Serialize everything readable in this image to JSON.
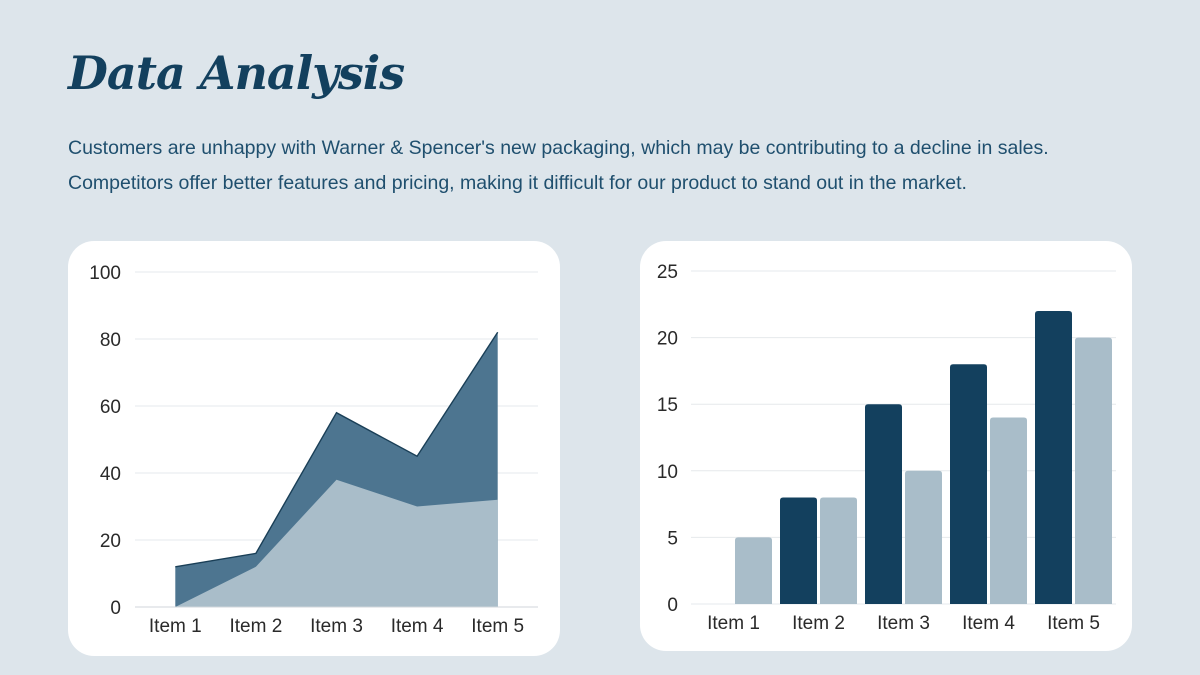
{
  "title": "Data Analysis",
  "description": [
    "Customers are unhappy with Warner & Spencer's new packaging, which may be contributing to a decline in sales.",
    "Competitors offer better features and pricing, making it difficult for our product to stand out in the market."
  ],
  "colors": {
    "background": "#dde5eb",
    "dark": "#13405e",
    "area_dark": "#4d7590",
    "light": "#a9bdc9"
  },
  "chart_data": [
    {
      "type": "area",
      "categories": [
        "Item 1",
        "Item 2",
        "Item 3",
        "Item 4",
        "Item 5"
      ],
      "series": [
        {
          "values": [
            12,
            16,
            58,
            45,
            82
          ],
          "color": "#4d7590"
        },
        {
          "values": [
            0,
            12,
            38,
            30,
            32
          ],
          "color": "#a9bdc9"
        }
      ],
      "ylim": [
        0,
        100
      ],
      "yticks": [
        0,
        20,
        40,
        60,
        80,
        100
      ],
      "grid": true,
      "title": "",
      "xlabel": "",
      "ylabel": ""
    },
    {
      "type": "bar",
      "categories": [
        "Item 1",
        "Item 2",
        "Item 3",
        "Item 4",
        "Item 5"
      ],
      "series": [
        {
          "values": [
            0,
            8,
            15,
            18,
            22
          ],
          "color": "#13405e"
        },
        {
          "values": [
            5,
            8,
            10,
            14,
            20
          ],
          "color": "#a9bdc9"
        }
      ],
      "ylim": [
        0,
        25
      ],
      "yticks": [
        0,
        5,
        10,
        15,
        20,
        25
      ],
      "grid": true,
      "title": "",
      "xlabel": "",
      "ylabel": ""
    }
  ]
}
